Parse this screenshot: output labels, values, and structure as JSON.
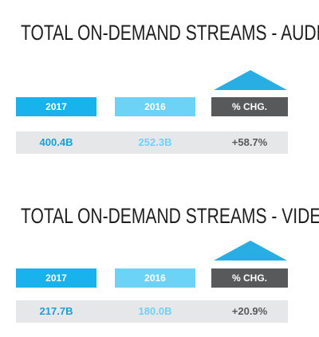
{
  "chart_data": [
    {
      "type": "table",
      "title": "TOTAL ON-DEMAND STREAMS - AUDIO",
      "columns": [
        "2017",
        "2016",
        "% CHG."
      ],
      "values": [
        "400.4B",
        "252.3B",
        "+58.7%"
      ],
      "trend": "up",
      "colors": {
        "c2017": "#18b3ec",
        "c2016": "#6cd3f7",
        "chg": "#58595b",
        "arrow": "#29aee3"
      }
    },
    {
      "type": "table",
      "title": "TOTAL ON-DEMAND STREAMS - VIDEO",
      "columns": [
        "2017",
        "2016",
        "% CHG."
      ],
      "values": [
        "217.7B",
        "180.0B",
        "+20.9%"
      ],
      "trend": "up",
      "colors": {
        "c2017": "#18b3ec",
        "c2016": "#6cd3f7",
        "chg": "#58595b",
        "arrow": "#29aee3"
      }
    }
  ]
}
